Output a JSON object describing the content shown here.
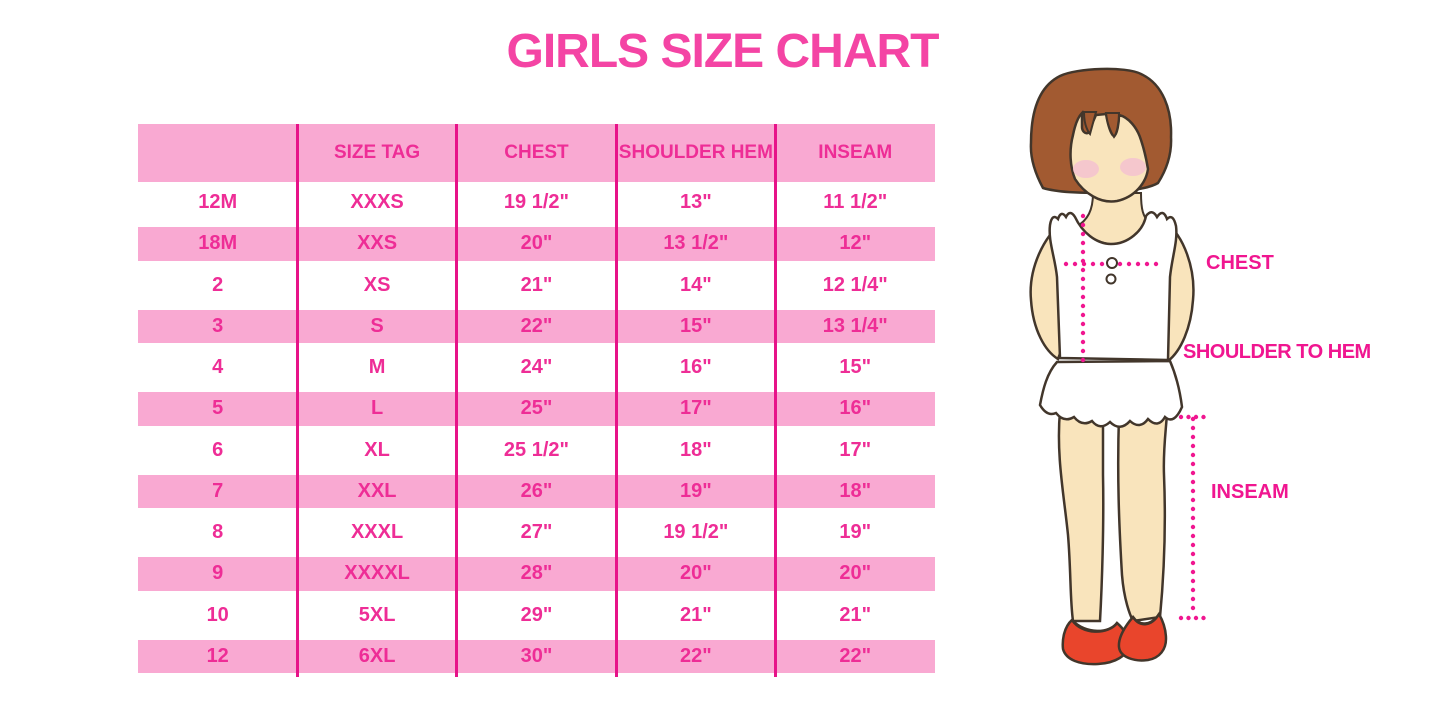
{
  "page": {
    "title": "GIRLS SIZE CHART"
  },
  "colors": {
    "title_pink": "#F444A4",
    "table_text_pink": "#EE2D96",
    "row_band_pink": "#F9A9D2",
    "separator_pink": "#E71389",
    "label_pink": "#F01690",
    "hair_brown": "#A25A31",
    "outline": "#42362b",
    "skin": "#F9E4BC",
    "blush": "#F5C3D0",
    "shoe_red": "#E9452C"
  },
  "table": {
    "headers": [
      "",
      "SIZE TAG",
      "CHEST",
      "SHOULDER HEM",
      "INSEAM"
    ],
    "rows": [
      [
        "12M",
        "XXXS",
        "19 1/2\"",
        "13\"",
        "11 1/2\""
      ],
      [
        "18M",
        "XXS",
        "20\"",
        "13 1/2\"",
        "12\""
      ],
      [
        "2",
        "XS",
        "21\"",
        "14\"",
        "12 1/4\""
      ],
      [
        "3",
        "S",
        "22\"",
        "15\"",
        "13 1/4\""
      ],
      [
        "4",
        "M",
        "24\"",
        "16\"",
        "15\""
      ],
      [
        "5",
        "L",
        "25\"",
        "17\"",
        "16\""
      ],
      [
        "6",
        "XL",
        "25 1/2\"",
        "18\"",
        "17\""
      ],
      [
        "7",
        "XXL",
        "26\"",
        "19\"",
        "18\""
      ],
      [
        "8",
        "XXXL",
        "27\"",
        "19 1/2\"",
        "19\""
      ],
      [
        "9",
        "XXXXL",
        "28\"",
        "20\"",
        "20\""
      ],
      [
        "10",
        "5XL",
        "29\"",
        "21\"",
        "21\""
      ],
      [
        "12",
        "6XL",
        "30\"",
        "22\"",
        "22\""
      ]
    ]
  },
  "figure": {
    "labels": {
      "chest": "CHEST",
      "shoulder_to_hem": "SHOULDER TO HEM",
      "inseam": "INSEAM"
    }
  }
}
